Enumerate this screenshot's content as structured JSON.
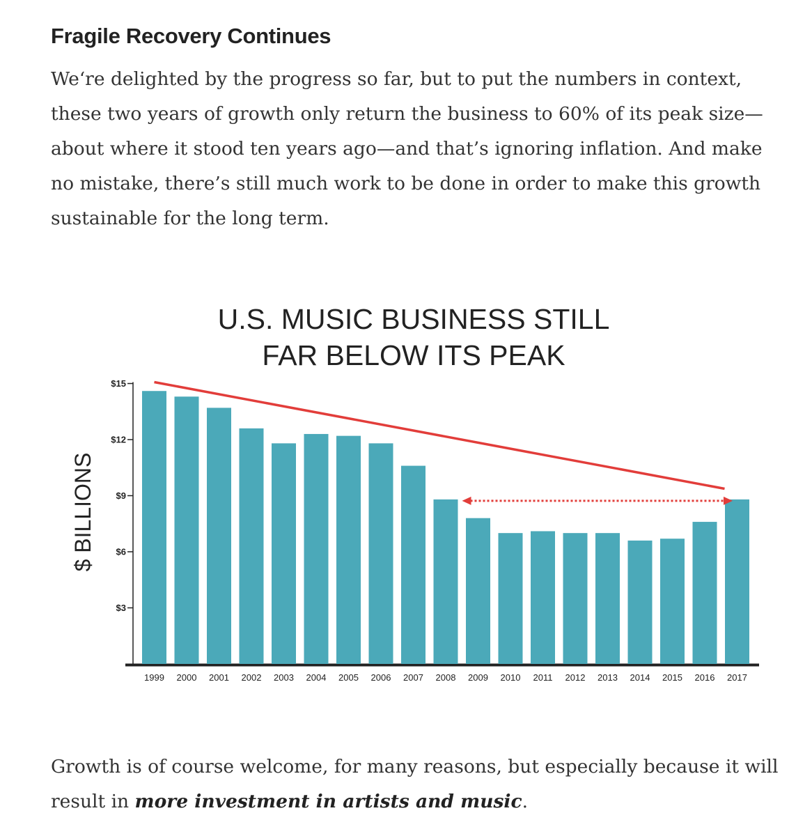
{
  "article": {
    "heading": "Fragile Recovery Continues",
    "para1": "We‘re delighted by the progress so far, but to put the numbers in context, these two years of growth only return the business to 60% of its peak size—about where it stood ten years ago—and that’s ignoring inflation. And make no mistake, there’s still much work to be done in order to make this growth sustainable for the long term.",
    "para2_before": "Growth is of course welcome, for many reasons, but especially because it will result in ",
    "para2_emph": "more investment in artists and music",
    "para2_after": "."
  },
  "chart_data": {
    "type": "bar",
    "title_lines": [
      "U.S. MUSIC BUSINESS STILL",
      "FAR BELOW ITS PEAK"
    ],
    "ylabel": "$ BILLIONS",
    "xlabel": "",
    "ylim": [
      0,
      15
    ],
    "yticks": [
      3,
      6,
      9,
      12,
      15
    ],
    "ytick_labels": [
      "$3",
      "$6",
      "$9",
      "$12",
      "$15"
    ],
    "categories": [
      "1999",
      "2000",
      "2001",
      "2002",
      "2003",
      "2004",
      "2005",
      "2006",
      "2007",
      "2008",
      "2009",
      "2010",
      "2011",
      "2012",
      "2013",
      "2014",
      "2015",
      "2016",
      "2017"
    ],
    "values": [
      14.6,
      14.3,
      13.7,
      12.6,
      11.8,
      12.3,
      12.2,
      11.8,
      10.6,
      8.8,
      7.8,
      7.0,
      7.1,
      7.0,
      7.0,
      6.6,
      6.7,
      7.6,
      8.8
    ],
    "bar_color": "#4ba9b9",
    "annotation_color": "#e23d3a",
    "annotations": [
      {
        "type": "trend_line",
        "from_category": "1999",
        "to_category": "2017",
        "from_value": 15.0,
        "to_value": 9.0
      },
      {
        "type": "double_arrow_dotted",
        "from_category": "2009",
        "to_category": "2016",
        "value": 8.8
      }
    ],
    "grid": false
  }
}
